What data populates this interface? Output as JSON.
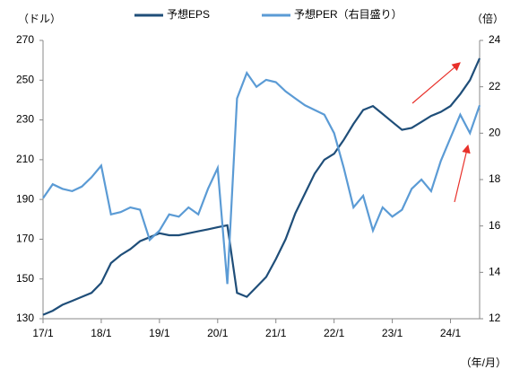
{
  "chart_data": {
    "type": "line",
    "y_label": "（ドル）",
    "y2_label": "（倍）",
    "x_label": "（年/月）",
    "categories": [
      "17/1",
      null,
      null,
      null,
      null,
      null,
      "18/1",
      null,
      null,
      null,
      null,
      null,
      "19/1",
      null,
      null,
      null,
      null,
      null,
      "20/1",
      null,
      null,
      null,
      null,
      null,
      "21/1",
      null,
      null,
      null,
      null,
      null,
      "22/1",
      null,
      null,
      null,
      null,
      null,
      "23/1",
      null,
      null,
      null,
      null,
      null,
      "24/1",
      null,
      null,
      null
    ],
    "series": [
      {
        "name": "予想EPS",
        "color": "#1f4e79",
        "values": [
          132,
          134,
          137,
          139,
          141,
          143,
          148,
          158,
          162,
          165,
          169,
          171,
          173,
          172,
          172,
          173,
          174,
          175,
          176,
          177,
          143,
          141,
          146,
          151,
          160,
          170,
          183,
          193,
          203,
          210,
          213,
          220,
          228,
          235,
          237,
          233,
          229,
          225,
          226,
          229,
          232,
          234,
          237,
          243,
          250,
          261
        ]
      },
      {
        "name": "予想PER（右目盛り）",
        "color": "#5b9bd5",
        "axis": "y2",
        "values": [
          17.2,
          17.8,
          17.6,
          17.5,
          17.7,
          18.1,
          18.6,
          16.5,
          16.6,
          16.8,
          16.7,
          15.4,
          15.8,
          16.5,
          16.4,
          16.8,
          16.5,
          17.6,
          18.5,
          13.5,
          21.5,
          22.6,
          22.0,
          22.3,
          22.2,
          21.8,
          21.5,
          21.2,
          21.0,
          20.8,
          20.0,
          18.5,
          16.8,
          17.3,
          15.8,
          16.8,
          16.4,
          16.7,
          17.6,
          18.0,
          17.5,
          18.8,
          19.8,
          20.8,
          20.0,
          21.2
        ]
      }
    ],
    "ylim": [
      130,
      270
    ],
    "yticks": [
      130,
      150,
      170,
      190,
      210,
      230,
      250,
      270
    ],
    "y2lim": [
      12,
      24
    ],
    "y2ticks": [
      12,
      14,
      16,
      18,
      20,
      22,
      24
    ]
  }
}
